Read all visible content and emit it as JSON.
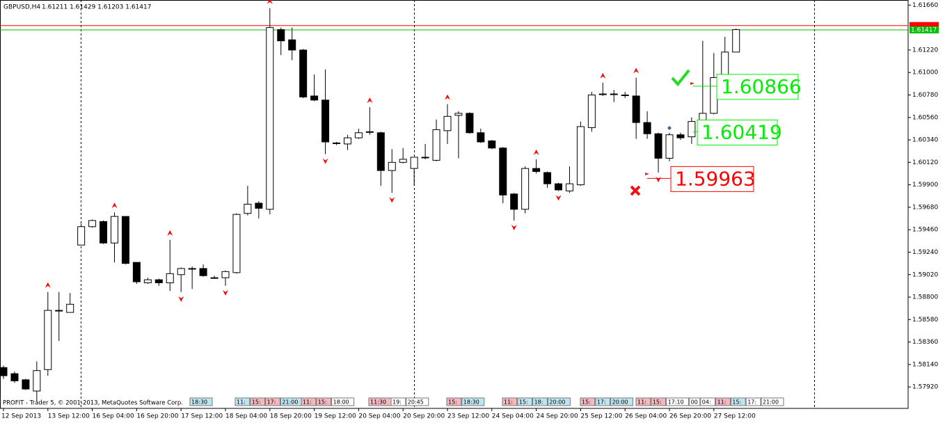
{
  "chart_data": {
    "type": "candlestick",
    "title": "GBPUSD,H4",
    "subtitle": "1.61211 1.61429 1.61203 1.61417",
    "footer": "PROFIT - Trader 5, © 2001-2013, MetaQuotes Software Corp.",
    "categories": [
      "12 Sep 2013",
      null,
      null,
      null,
      "13 Sep 12:00",
      null,
      null,
      null,
      "16 Sep 04:00",
      null,
      null,
      null,
      "16 Sep 20:00",
      null,
      null,
      null,
      "17 Sep 12:00",
      null,
      null,
      null,
      "18 Sep 04:00",
      null,
      null,
      null,
      "18 Sep 20:00",
      null,
      null,
      null,
      "19 Sep 12:00",
      null,
      null,
      null,
      "20 Sep 04:00",
      null,
      null,
      null,
      "20 Sep 20:00",
      null,
      null,
      null,
      "23 Sep 12:00",
      null,
      null,
      null,
      "24 Sep 04:00",
      null,
      null,
      null,
      "24 Sep 20:00",
      null,
      null,
      null,
      "25 Sep 12:00",
      null,
      null,
      null,
      "26 Sep 04:00",
      null,
      null,
      null,
      "26 Sep 20:00",
      null,
      null,
      null,
      "27 Sep 12:00",
      null,
      null
    ],
    "open": [
      1.5811,
      1.5805,
      1.5799,
      1.5788,
      1.5809,
      1.5867,
      1.5865,
      1.5931,
      1.5949,
      1.5954,
      1.5933,
      1.5959,
      1.5914,
      1.5894,
      1.5897,
      1.5894,
      1.5902,
      1.5908,
      1.5908,
      1.5899,
      1.5899,
      1.5904,
      1.5962,
      1.5972,
      1.5966,
      1.6142,
      1.6132,
      1.6122,
      1.6077,
      1.6073,
      1.6031,
      1.603,
      1.6036,
      1.6042,
      1.6041,
      1.6004,
      1.6012,
      1.6006,
      1.6017,
      1.6014,
      1.6043,
      1.6058,
      1.606,
      1.6041,
      1.6033,
      1.6026,
      1.5981,
      1.5966,
      1.6006,
      1.6002,
      1.5991,
      1.5984,
      1.599,
      1.6046,
      1.6079,
      1.6079,
      1.6078,
      1.6077,
      1.6051,
      1.604,
      1.6016,
      1.6039,
      1.6037,
      1.6051,
      1.606,
      1.6095,
      1.612
    ],
    "high": [
      1.5813,
      1.5807,
      1.58,
      1.5817,
      1.5885,
      1.5885,
      1.5884,
      1.5952,
      1.5956,
      1.5955,
      1.5963,
      1.5959,
      1.5914,
      1.5899,
      1.5898,
      1.5936,
      1.5909,
      1.591,
      1.5912,
      1.5901,
      1.5906,
      1.5962,
      1.5989,
      1.5974,
      1.6163,
      1.6144,
      1.6144,
      1.6123,
      1.6098,
      1.6103,
      1.6032,
      1.6039,
      1.6045,
      1.6066,
      1.6042,
      1.6025,
      1.6026,
      1.6017,
      1.603,
      1.6054,
      1.6069,
      1.6062,
      1.6061,
      1.6045,
      1.6034,
      1.6027,
      1.5982,
      1.6008,
      1.6015,
      1.6003,
      1.5992,
      1.6008,
      1.6052,
      1.6081,
      1.609,
      1.6083,
      1.6081,
      1.6095,
      1.6062,
      1.6041,
      1.6041,
      1.6041,
      1.6056,
      1.6131,
      1.6119,
      1.6135,
      1.6143
    ],
    "low": [
      1.58,
      1.5796,
      1.5789,
      1.5778,
      1.5803,
      1.5837,
      1.5865,
      1.5931,
      1.5948,
      1.5932,
      1.5914,
      1.5912,
      1.5893,
      1.5893,
      1.5891,
      1.5886,
      1.5885,
      1.5888,
      1.59,
      1.5898,
      1.5891,
      1.5903,
      1.596,
      1.5957,
      1.5961,
      1.6117,
      1.6112,
      1.6075,
      1.6072,
      1.602,
      1.6029,
      1.6024,
      1.6035,
      1.6039,
      1.5989,
      1.5982,
      1.6011,
      1.5989,
      1.6015,
      1.6013,
      1.603,
      1.6016,
      1.604,
      1.6031,
      1.6025,
      1.5972,
      1.5955,
      1.5962,
      1.6001,
      1.5987,
      1.5984,
      1.5982,
      1.5989,
      1.6042,
      1.6077,
      1.6071,
      1.6075,
      1.6035,
      1.6035,
      1.6002,
      1.6013,
      1.6034,
      1.603,
      1.6049,
      1.6059,
      1.6094,
      1.612
    ],
    "close": [
      1.5803,
      1.5798,
      1.579,
      1.5808,
      1.5867,
      1.5867,
      1.5873,
      1.5949,
      1.5955,
      1.5933,
      1.5959,
      1.5913,
      1.5895,
      1.5897,
      1.5894,
      1.5903,
      1.5908,
      1.5908,
      1.5901,
      1.5899,
      1.5905,
      1.5961,
      1.5971,
      1.5967,
      1.6144,
      1.6131,
      1.6122,
      1.6076,
      1.6073,
      1.6032,
      1.6031,
      1.6036,
      1.6041,
      1.6042,
      1.6004,
      1.6012,
      1.6015,
      1.6017,
      1.6017,
      1.6044,
      1.6057,
      1.606,
      1.6041,
      1.6032,
      1.6026,
      1.598,
      1.5966,
      1.6006,
      1.6003,
      1.5991,
      1.5985,
      1.5991,
      1.6047,
      1.6078,
      1.6079,
      1.6079,
      1.6078,
      1.6051,
      1.604,
      1.6016,
      1.6039,
      1.6036,
      1.6052,
      1.606,
      1.6095,
      1.612,
      1.6142
    ],
    "bull_color": "#ffffff",
    "bear_color": "#000000",
    "fractals_up": [
      4,
      10,
      15,
      24,
      33,
      40,
      48,
      54,
      57
    ],
    "fractals_down": [
      16,
      20,
      29,
      35,
      46,
      50,
      59
    ],
    "fractal_color": "#ff0000",
    "ylim": [
      1.5771,
      1.6171
    ],
    "yticks": [
      {
        "value": 1.5792,
        "label": "1.57920"
      },
      {
        "value": 1.5814,
        "label": "1.58140"
      },
      {
        "value": 1.5836,
        "label": "1.58360"
      },
      {
        "value": 1.5858,
        "label": "1.58580"
      },
      {
        "value": 1.588,
        "label": "1.58800"
      },
      {
        "value": 1.5902,
        "label": "1.59020"
      },
      {
        "value": 1.5924,
        "label": "1.59240"
      },
      {
        "value": 1.5946,
        "label": "1.59460"
      },
      {
        "value": 1.5968,
        "label": "1.59680"
      },
      {
        "value": 1.599,
        "label": "1.59900"
      },
      {
        "value": 1.6012,
        "label": "1.60120"
      },
      {
        "value": 1.6034,
        "label": "1.60340"
      },
      {
        "value": 1.6056,
        "label": "1.60560"
      },
      {
        "value": 1.6078,
        "label": "1.60780"
      },
      {
        "value": 1.61,
        "label": "1.61000"
      },
      {
        "value": 1.6122,
        "label": "1.61220"
      },
      {
        "value": 1.6166,
        "label": "1.61660"
      }
    ],
    "ask_line": {
      "value": 1.6146,
      "color": "#ff0000"
    },
    "bid_line": {
      "value": 1.61417,
      "color": "#00c000"
    },
    "trade_levels": [
      {
        "value": 1.60866,
        "color": "#00ee00"
      },
      {
        "value": 1.60419,
        "color": "#00ee00"
      },
      {
        "value": 1.59963,
        "color": "#ff0000"
      }
    ],
    "event_groups": [
      [
        {
          "text": "18:30",
          "color": "#bfe6f0"
        }
      ],
      [
        {
          "text": "11:",
          "color": "#bfe6f0"
        },
        {
          "text": "15:",
          "color": "#f4b8c0"
        },
        {
          "text": "17:",
          "color": "#f4b8c0"
        },
        {
          "text": "21:00",
          "color": "#bfe6f0"
        }
      ],
      [
        {
          "text": "11:",
          "color": "#f4b8c0"
        },
        {
          "text": "15:",
          "color": "#f4b8c0"
        },
        {
          "text": "18:00",
          "color": "#ffffff"
        }
      ],
      [
        {
          "text": "11:30",
          "color": "#f4b8c0"
        }
      ],
      [
        {
          "text": "19:",
          "color": "#ffffff"
        },
        {
          "text": "20:45",
          "color": "#ffffff"
        }
      ],
      [
        {
          "text": "15:",
          "color": "#f4b8c0"
        },
        {
          "text": "18:30",
          "color": "#bfe6f0"
        }
      ],
      [
        {
          "text": "11:",
          "color": "#f4b8c0"
        },
        {
          "text": "15:",
          "color": "#bfe6f0"
        },
        {
          "text": "18:",
          "color": "#bfe6f0"
        },
        {
          "text": "20:00",
          "color": "#bfe6f0"
        }
      ],
      [
        {
          "text": "15:",
          "color": "#f4b8c0"
        },
        {
          "text": "17:",
          "color": "#bfe6f0"
        },
        {
          "text": "20:00",
          "color": "#bfe6f0"
        }
      ],
      [
        {
          "text": "11:",
          "color": "#f4b8c0"
        },
        {
          "text": "15:",
          "color": "#f4b8c0"
        },
        {
          "text": "17:10",
          "color": "#ffffff"
        },
        {
          "text": "00",
          "color": "#ffffff"
        },
        {
          "text": "04:",
          "color": "#ffffff"
        },
        {
          "text": "11:",
          "color": "#f4b8c0"
        },
        {
          "text": "15:",
          "color": "#bfe6f0"
        },
        {
          "text": "17:",
          "color": "#ffffff"
        },
        {
          "text": "21:00",
          "color": "#ffffff"
        }
      ]
    ]
  }
}
